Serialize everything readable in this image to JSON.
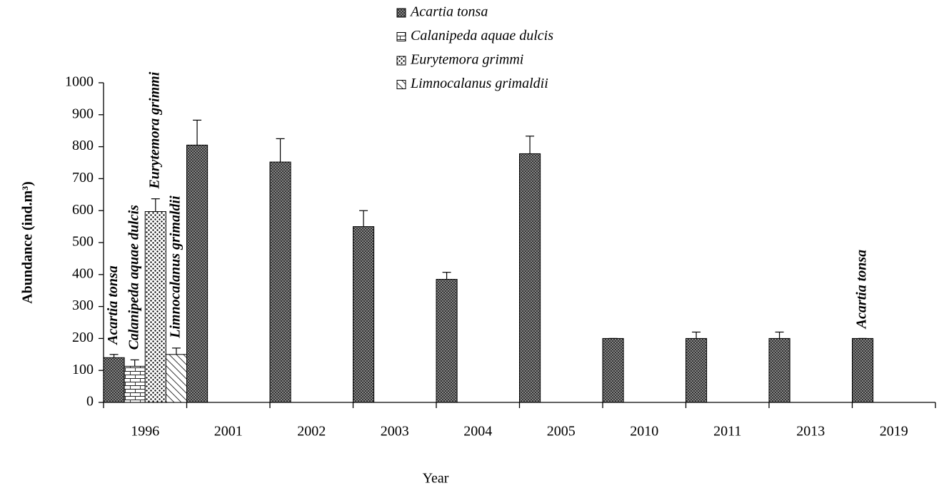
{
  "chart_data": {
    "type": "bar",
    "xlabel": "Year",
    "ylabel": "Abundance (ind.m³)",
    "categories": [
      "1996",
      "2001",
      "2002",
      "2003",
      "2004",
      "2005",
      "2010",
      "2011",
      "2013",
      "2019"
    ],
    "series": [
      {
        "name": "Acartia tonsa",
        "color": "#a0a0a0",
        "pattern": "dense",
        "values": [
          140,
          805,
          752,
          550,
          385,
          778,
          200,
          200,
          200,
          200
        ],
        "errors": [
          10,
          78,
          73,
          50,
          22,
          55,
          0,
          20,
          20,
          0
        ]
      },
      {
        "name": "Calanipeda aquae dulcis",
        "color": "#ffffff",
        "pattern": "brick",
        "values": [
          113,
          null,
          null,
          null,
          null,
          null,
          null,
          null,
          null,
          null
        ],
        "errors": [
          20,
          null,
          null,
          null,
          null,
          null,
          null,
          null,
          null,
          null
        ]
      },
      {
        "name": "Eurytemora grimmi",
        "color": "#ffffff",
        "pattern": "dots",
        "values": [
          597,
          null,
          null,
          null,
          null,
          null,
          null,
          null,
          null,
          null
        ],
        "errors": [
          40,
          null,
          null,
          null,
          null,
          null,
          null,
          null,
          null,
          null
        ]
      },
      {
        "name": "Limnocalanus grimaldii",
        "color": "#ffffff",
        "pattern": "diagonal",
        "values": [
          150,
          null,
          null,
          null,
          null,
          null,
          null,
          null,
          null,
          null
        ],
        "errors": [
          20,
          null,
          null,
          null,
          null,
          null,
          null,
          null,
          null,
          null
        ]
      }
    ],
    "annotations": [
      "Acartia tonsa",
      "Calanipeda aquae dulcis",
      "Eurytemora grimmi",
      "Limnocalanus grimaldii",
      "Acartia tonsa"
    ],
    "ylim": [
      0,
      1000
    ],
    "yticks": [
      0,
      100,
      200,
      300,
      400,
      500,
      600,
      700,
      800,
      900,
      1000
    ],
    "legend": "top",
    "error_bars": true
  }
}
